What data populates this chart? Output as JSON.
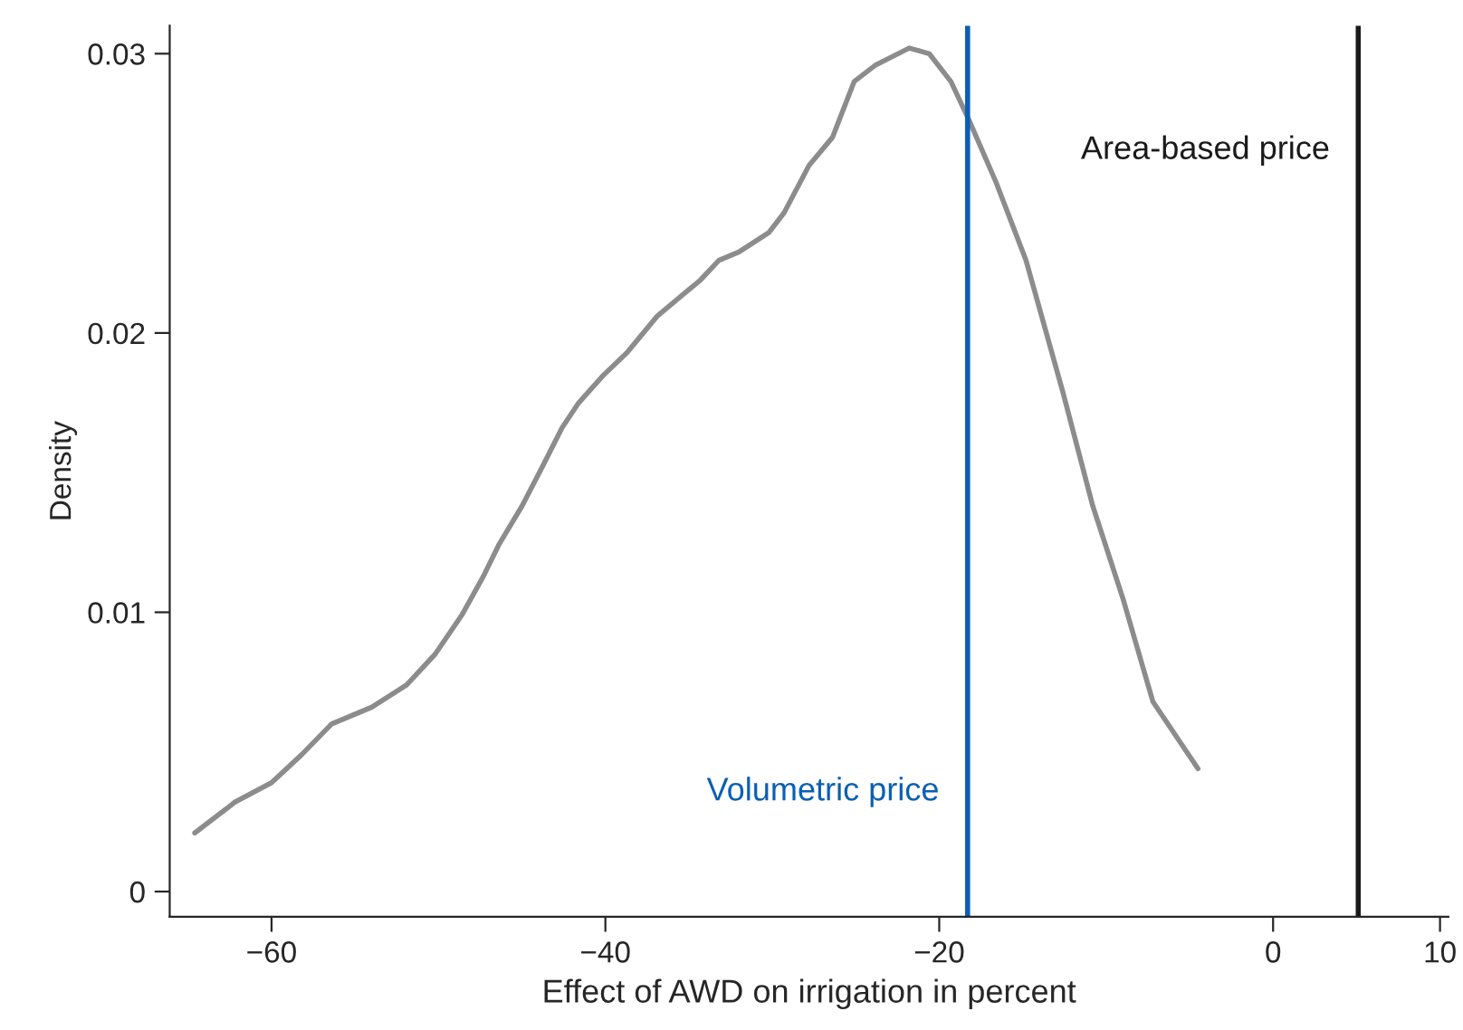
{
  "chart_data": {
    "type": "line",
    "xlabel": "Effect of AWD on irrigation in percent",
    "ylabel": "Density",
    "x": [
      -64.6,
      -62.2,
      -60.0,
      -58.2,
      -56.4,
      -54.0,
      -51.9,
      -50.2,
      -48.6,
      -47.3,
      -46.4,
      -45.0,
      -43.7,
      -42.6,
      -41.6,
      -40.1,
      -38.7,
      -36.9,
      -34.3,
      -33.2,
      -32.0,
      -30.2,
      -29.3,
      -27.8,
      -26.4,
      -25.1,
      -23.8,
      -21.8,
      -20.6,
      -19.3,
      -18.2,
      -16.6,
      -14.8,
      -12.6,
      -10.8,
      -9.0,
      -7.2,
      -4.5
    ],
    "series": [
      {
        "color": "#8c8c8c",
        "values": [
          0.0021,
          0.0032,
          0.0039,
          0.0049,
          0.006,
          0.0066,
          0.0074,
          0.0085,
          0.0099,
          0.0113,
          0.0124,
          0.0138,
          0.0153,
          0.0166,
          0.0175,
          0.0185,
          0.0193,
          0.0206,
          0.0219,
          0.0226,
          0.0229,
          0.0236,
          0.0243,
          0.026,
          0.027,
          0.029,
          0.0296,
          0.0302,
          0.03,
          0.029,
          0.0276,
          0.0254,
          0.0226,
          0.0179,
          0.0138,
          0.0105,
          0.0068,
          0.0044
        ]
      }
    ],
    "xlim": [
      -66.1,
      10.5
    ],
    "ylim": [
      -0.0009,
      0.031
    ],
    "xticks": [
      {
        "value": -60,
        "label": "−60"
      },
      {
        "value": -40,
        "label": "−40"
      },
      {
        "value": -20,
        "label": "−20"
      },
      0,
      10
    ],
    "yticks": [
      0,
      0.01,
      0.02,
      0.03
    ],
    "ref_lines": [
      {
        "axis": "x",
        "value": -18.3,
        "label": "Volumetric price",
        "color": "#0a5fb4"
      },
      {
        "axis": "x",
        "value": 5.1,
        "label": "Area-based price",
        "color": "#1a1a1a"
      }
    ],
    "grid": false,
    "legend": false,
    "marker": "none",
    "line_style": "solid"
  }
}
